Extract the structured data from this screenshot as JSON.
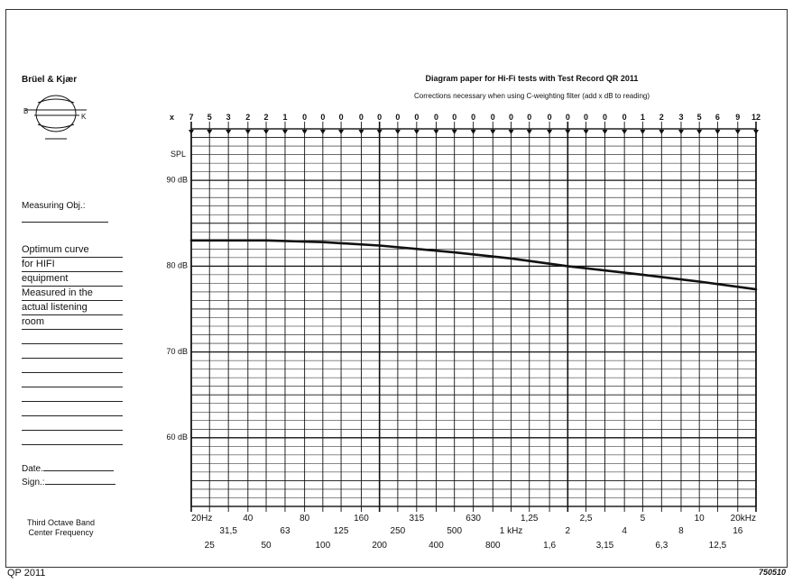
{
  "header": {
    "brand": "Brüel & Kjær",
    "title": "Diagram paper for Hi-Fi tests with Test Record QR 2011",
    "subtitle": "Corrections necessary when using C-weighting filter (add x dB to reading)"
  },
  "form": {
    "measuring_obj_label": "Measuring Obj.:",
    "notes": [
      "Optimum curve",
      "for HIFI",
      "equipment",
      "Measured in the",
      "actual listening",
      "room"
    ],
    "date_label": "Date.",
    "sign_label": "Sign.:",
    "band_label_line1": "Third Octave Band",
    "band_label_line2": "Center Frequency"
  },
  "footer": {
    "form_code": "QP 2011",
    "ref_code": "750510"
  },
  "colors": {
    "ink": "#111111",
    "paper": "#ffffff"
  },
  "chart_data": {
    "type": "line",
    "x_scale": "log",
    "xlim": [
      20,
      20000
    ],
    "ylim": [
      52,
      96
    ],
    "y_axis_title": "SPL",
    "y_labels": [
      {
        "value": 90,
        "label": "90 dB"
      },
      {
        "value": 80,
        "label": "80 dB"
      },
      {
        "value": 70,
        "label": "70 dB"
      },
      {
        "value": 60,
        "label": "60 dB"
      }
    ],
    "frequencies": [
      {
        "hz": 20,
        "label": "20Hz",
        "row": 0
      },
      {
        "hz": 25,
        "label": "25",
        "row": 2
      },
      {
        "hz": 31.5,
        "label": "31,5",
        "row": 1
      },
      {
        "hz": 40,
        "label": "40",
        "row": 0
      },
      {
        "hz": 50,
        "label": "50",
        "row": 2
      },
      {
        "hz": 63,
        "label": "63",
        "row": 1
      },
      {
        "hz": 80,
        "label": "80",
        "row": 0
      },
      {
        "hz": 100,
        "label": "100",
        "row": 2
      },
      {
        "hz": 125,
        "label": "125",
        "row": 1
      },
      {
        "hz": 160,
        "label": "160",
        "row": 0
      },
      {
        "hz": 200,
        "label": "200",
        "row": 2
      },
      {
        "hz": 250,
        "label": "250",
        "row": 1
      },
      {
        "hz": 315,
        "label": "315",
        "row": 0
      },
      {
        "hz": 400,
        "label": "400",
        "row": 2
      },
      {
        "hz": 500,
        "label": "500",
        "row": 1
      },
      {
        "hz": 630,
        "label": "630",
        "row": 0
      },
      {
        "hz": 800,
        "label": "800",
        "row": 2
      },
      {
        "hz": 1000,
        "label": "1 kHz",
        "row": 1
      },
      {
        "hz": 1250,
        "label": "1,25",
        "row": 0
      },
      {
        "hz": 1600,
        "label": "1,6",
        "row": 2
      },
      {
        "hz": 2000,
        "label": "2",
        "row": 1
      },
      {
        "hz": 2500,
        "label": "2,5",
        "row": 0
      },
      {
        "hz": 3150,
        "label": "3,15",
        "row": 2
      },
      {
        "hz": 4000,
        "label": "4",
        "row": 1
      },
      {
        "hz": 5000,
        "label": "5",
        "row": 0
      },
      {
        "hz": 6300,
        "label": "6,3",
        "row": 2
      },
      {
        "hz": 8000,
        "label": "8",
        "row": 1
      },
      {
        "hz": 10000,
        "label": "10",
        "row": 0
      },
      {
        "hz": 12500,
        "label": "12,5",
        "row": 2
      },
      {
        "hz": 16000,
        "label": "16",
        "row": 1
      },
      {
        "hz": 20000,
        "label": "20kHz",
        "row": 0
      }
    ],
    "corrections_prefix": "x",
    "corrections": [
      7,
      5,
      3,
      2,
      2,
      1,
      0,
      0,
      0,
      0,
      0,
      0,
      0,
      0,
      0,
      0,
      0,
      0,
      0,
      0,
      0,
      0,
      0,
      0,
      1,
      2,
      3,
      5,
      6,
      9,
      12
    ],
    "curve": {
      "x": [
        20,
        50,
        100,
        200,
        500,
        1000,
        2000,
        5000,
        10000,
        20000
      ],
      "y": [
        83,
        83,
        82.8,
        82.4,
        81.6,
        80.9,
        80.0,
        79.0,
        78.2,
        77.3
      ]
    }
  }
}
